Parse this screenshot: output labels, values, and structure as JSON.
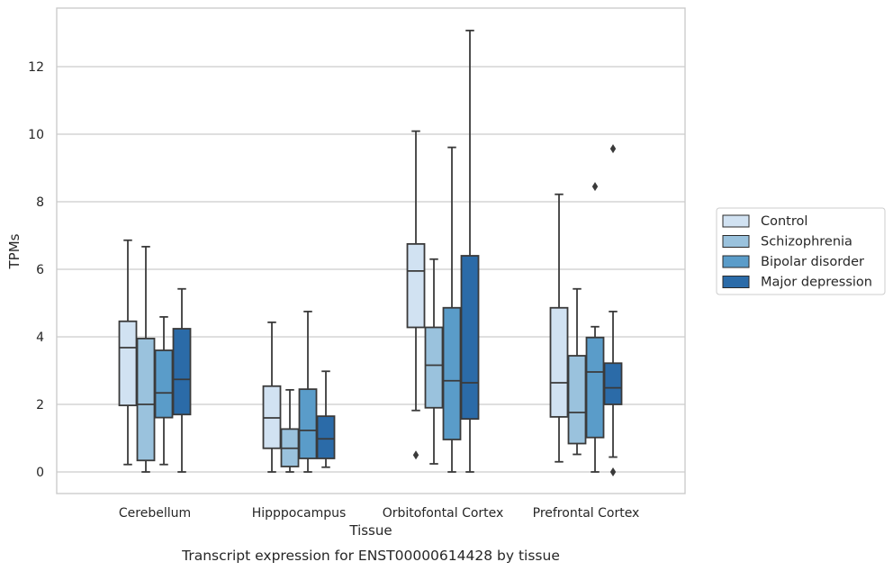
{
  "chart_data": {
    "type": "boxplot",
    "title": "Transcript expression for ENST00000614428 by tissue",
    "xlabel": "Tissue",
    "ylabel": "TPMs",
    "ylim": [
      -0.6,
      13.8
    ],
    "yticks": [
      0,
      2,
      4,
      6,
      8,
      10,
      12
    ],
    "grid": "horizontal",
    "legend_position": "right",
    "categories": [
      "Cerebellum",
      "Hipppocampus",
      "Orbitofontal Cortex",
      "Prefrontal Cortex"
    ],
    "series": [
      {
        "name": "Control",
        "color": "#d1e2f2",
        "boxes": [
          {
            "whislo": 0.22,
            "q1": 1.97,
            "med": 3.68,
            "q3": 4.46,
            "whishi": 6.86,
            "fliers": []
          },
          {
            "whislo": 0.0,
            "q1": 0.7,
            "med": 1.6,
            "q3": 2.54,
            "whishi": 4.43,
            "fliers": []
          },
          {
            "whislo": 1.82,
            "q1": 4.28,
            "med": 5.95,
            "q3": 6.75,
            "whishi": 10.09,
            "fliers": [
              0.5
            ]
          },
          {
            "whislo": 0.3,
            "q1": 1.63,
            "med": 2.64,
            "q3": 4.86,
            "whishi": 8.22,
            "fliers": []
          }
        ]
      },
      {
        "name": "Schizophrenia",
        "color": "#9ac2dd",
        "boxes": [
          {
            "whislo": 0.0,
            "q1": 0.34,
            "med": 2.0,
            "q3": 3.95,
            "whishi": 6.67,
            "fliers": []
          },
          {
            "whislo": 0.0,
            "q1": 0.16,
            "med": 0.7,
            "q3": 1.27,
            "whishi": 2.43,
            "fliers": []
          },
          {
            "whislo": 0.24,
            "q1": 1.9,
            "med": 3.16,
            "q3": 4.28,
            "whishi": 6.3,
            "fliers": []
          },
          {
            "whislo": 0.52,
            "q1": 0.84,
            "med": 1.76,
            "q3": 3.44,
            "whishi": 5.42,
            "fliers": []
          }
        ]
      },
      {
        "name": "Bipolar disorder",
        "color": "#5a9cc9",
        "boxes": [
          {
            "whislo": 0.22,
            "q1": 1.61,
            "med": 2.34,
            "q3": 3.6,
            "whishi": 4.59,
            "fliers": []
          },
          {
            "whislo": 0.0,
            "q1": 0.4,
            "med": 1.23,
            "q3": 2.45,
            "whishi": 4.75,
            "fliers": []
          },
          {
            "whislo": 0.0,
            "q1": 0.96,
            "med": 2.7,
            "q3": 4.86,
            "whishi": 9.61,
            "fliers": []
          },
          {
            "whislo": 0.0,
            "q1": 1.02,
            "med": 2.96,
            "q3": 3.98,
            "whishi": 4.3,
            "fliers": [
              8.45
            ]
          }
        ]
      },
      {
        "name": "Major depression",
        "color": "#2b6ba8",
        "boxes": [
          {
            "whislo": 0.0,
            "q1": 1.7,
            "med": 2.74,
            "q3": 4.24,
            "whishi": 5.42,
            "fliers": []
          },
          {
            "whislo": 0.14,
            "q1": 0.4,
            "med": 0.98,
            "q3": 1.65,
            "whishi": 2.98,
            "fliers": []
          },
          {
            "whislo": 0.0,
            "q1": 1.57,
            "med": 2.64,
            "q3": 6.4,
            "whishi": 13.07,
            "fliers": []
          },
          {
            "whislo": 0.44,
            "q1": 2.0,
            "med": 2.49,
            "q3": 3.22,
            "whishi": 4.75,
            "fliers": [
              9.57,
              0.0
            ]
          }
        ]
      }
    ]
  }
}
